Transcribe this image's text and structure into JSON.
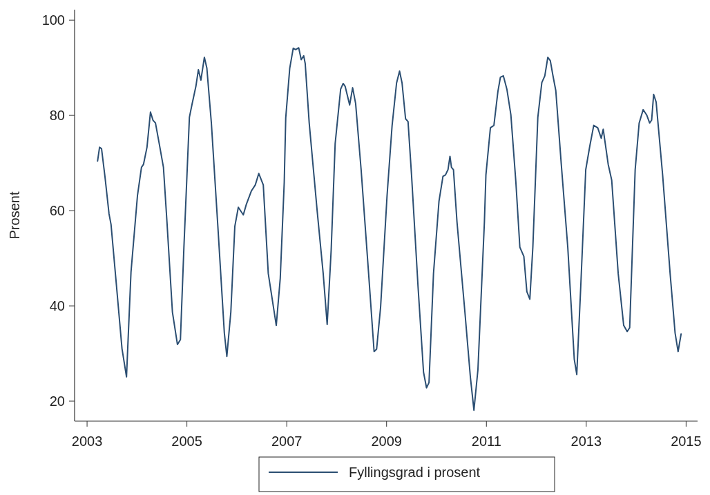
{
  "chart_data": {
    "type": "line",
    "ylabel": "Prosent",
    "x": [
      2003.21,
      2003.25,
      2003.29,
      2003.36,
      2003.44,
      2003.48,
      2003.59,
      2003.7,
      2003.79,
      2003.88,
      2004.01,
      2004.09,
      2004.13,
      2004.2,
      2004.27,
      2004.32,
      2004.37,
      2004.45,
      2004.53,
      2004.6,
      2004.71,
      2004.81,
      2004.87,
      2004.94,
      2005.05,
      2005.1,
      2005.18,
      2005.23,
      2005.28,
      2005.35,
      2005.4,
      2005.49,
      2005.62,
      2005.75,
      2005.8,
      2005.88,
      2005.96,
      2006.03,
      2006.13,
      2006.19,
      2006.29,
      2006.37,
      2006.44,
      2006.53,
      2006.63,
      2006.79,
      2006.87,
      2006.95,
      2006.98,
      2007.06,
      2007.13,
      2007.18,
      2007.24,
      2007.29,
      2007.34,
      2007.37,
      2007.45,
      2007.61,
      2007.73,
      2007.81,
      2007.89,
      2007.97,
      2008.08,
      2008.13,
      2008.17,
      2008.26,
      2008.32,
      2008.38,
      2008.49,
      2008.64,
      2008.75,
      2008.8,
      2008.88,
      2009.01,
      2009.11,
      2009.2,
      2009.26,
      2009.31,
      2009.38,
      2009.43,
      2009.5,
      2009.63,
      2009.74,
      2009.8,
      2009.85,
      2009.94,
      2010.05,
      2010.13,
      2010.18,
      2010.23,
      2010.27,
      2010.3,
      2010.34,
      2010.41,
      2010.57,
      2010.68,
      2010.75,
      2010.83,
      2010.96,
      2010.99,
      2011.08,
      2011.15,
      2011.23,
      2011.28,
      2011.34,
      2011.41,
      2011.49,
      2011.59,
      2011.67,
      2011.75,
      2011.81,
      2011.87,
      2011.93,
      2012.03,
      2012.11,
      2012.17,
      2012.23,
      2012.28,
      2012.33,
      2012.39,
      2012.5,
      2012.63,
      2012.76,
      2012.81,
      2012.89,
      2012.99,
      2013.07,
      2013.15,
      2013.23,
      2013.3,
      2013.34,
      2013.44,
      2013.51,
      2013.64,
      2013.75,
      2013.82,
      2013.87,
      2013.98,
      2014.06,
      2014.14,
      2014.21,
      2014.27,
      2014.31,
      2014.35,
      2014.4,
      2014.53,
      2014.68,
      2014.78,
      2014.84,
      2014.9
    ],
    "series": [
      {
        "name": "Fyllingsgrad i prosent",
        "color": "#2b4e72",
        "values": [
          70.4,
          73.3,
          73.0,
          67.0,
          59.3,
          57.1,
          44.1,
          31.0,
          25.1,
          47.1,
          63.2,
          69.1,
          69.7,
          73.3,
          80.7,
          79.0,
          78.4,
          73.8,
          69.1,
          57.7,
          38.7,
          31.9,
          32.9,
          52.3,
          79.6,
          82.2,
          86.1,
          89.6,
          87.4,
          92.2,
          89.9,
          78.4,
          56.7,
          34.3,
          29.4,
          38.7,
          56.7,
          60.7,
          59.1,
          61.3,
          64.1,
          65.4,
          67.8,
          65.4,
          46.8,
          35.9,
          45.8,
          66.0,
          79.5,
          89.9,
          94.1,
          93.8,
          94.2,
          91.7,
          92.5,
          90.9,
          78.4,
          59.9,
          46.8,
          36.1,
          51.7,
          74.1,
          85.5,
          86.7,
          86.1,
          82.2,
          85.8,
          82.5,
          68.6,
          46.8,
          30.4,
          30.9,
          39.7,
          63.2,
          77.8,
          86.8,
          89.3,
          86.8,
          79.3,
          78.7,
          67.5,
          44.1,
          26.1,
          22.8,
          23.9,
          46.8,
          62.0,
          67.2,
          67.5,
          68.6,
          71.4,
          69.1,
          68.6,
          57.7,
          38.6,
          24.9,
          18.1,
          26.6,
          57.7,
          67.5,
          77.4,
          77.9,
          85.0,
          88.0,
          88.3,
          85.5,
          80.1,
          66.0,
          52.3,
          50.4,
          43.0,
          41.4,
          52.3,
          79.6,
          86.9,
          88.3,
          92.2,
          91.5,
          88.5,
          85.2,
          69.7,
          52.3,
          28.8,
          25.6,
          44.1,
          68.6,
          73.5,
          77.9,
          77.4,
          75.2,
          77.1,
          69.7,
          66.4,
          46.8,
          35.9,
          34.6,
          35.4,
          68.6,
          78.4,
          81.2,
          80.1,
          78.4,
          79.0,
          84.4,
          82.8,
          67.5,
          46.8,
          34.3,
          30.4,
          34.1
        ]
      }
    ],
    "xlim": [
      2002.75,
      2015.23
    ],
    "xticks": [
      2003,
      2005,
      2007,
      2009,
      2011,
      2013,
      2015
    ],
    "ylim": [
      15.8,
      102.2
    ],
    "yticks": [
      20,
      40,
      60,
      80,
      100
    ],
    "grid": false,
    "legend": "bottom",
    "marker": "none",
    "line_style": "solid"
  }
}
